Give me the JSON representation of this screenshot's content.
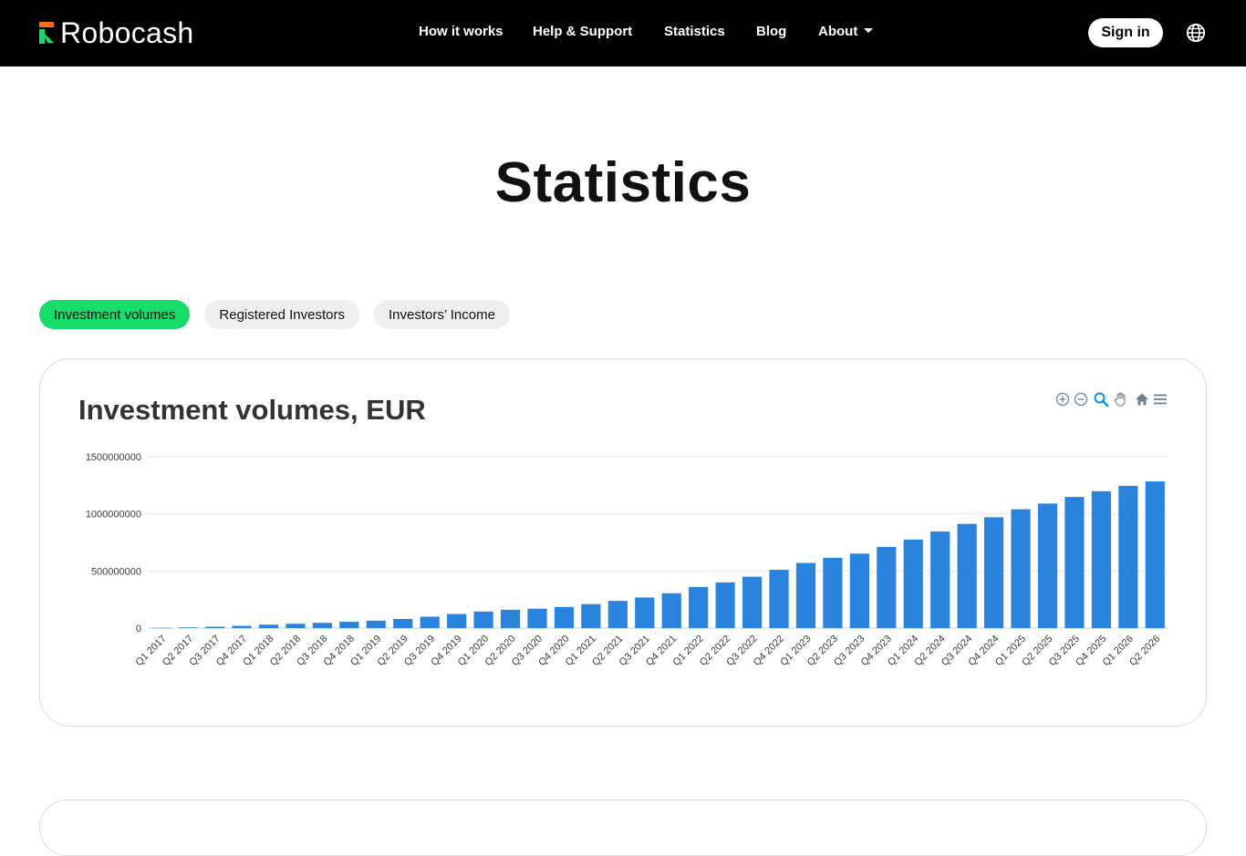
{
  "nav": {
    "brand": "Robocash",
    "links": [
      "How it works",
      "Help & Support",
      "Statistics",
      "Blog",
      "About"
    ],
    "signin": "Sign in",
    "globe_icon": "globe-icon",
    "about_icon": "caret-down-icon"
  },
  "page": {
    "title": "Statistics"
  },
  "tabs": [
    "Investment volumes",
    "Registered Investors",
    "Investors’ Income"
  ],
  "toolbar": {
    "icons": [
      "zoom-in-icon",
      "zoom-out-icon",
      "selection-zoom-icon",
      "pan-hand-icon",
      "reset-home-icon",
      "menu-icon"
    ]
  },
  "colors": {
    "accent": "#16dc6a",
    "bar": "#2a84de",
    "nav_bg": "#000000",
    "brand_orange": "#ff6b1a"
  },
  "chart_data": {
    "type": "bar",
    "title": "Investment volumes, EUR",
    "xlabel": "",
    "ylabel": "",
    "ylim": [
      0,
      1500000000
    ],
    "yticks": [
      "0",
      "500000000",
      "1000000000",
      "1500000000"
    ],
    "grid": true,
    "categories": [
      "Q1 2017",
      "Q2 2017",
      "Q3 2017",
      "Q4 2017",
      "Q1 2018",
      "Q2 2018",
      "Q3 2018",
      "Q4 2018",
      "Q1 2019",
      "Q2 2019",
      "Q3 2019",
      "Q4 2019",
      "Q1 2020",
      "Q2 2020",
      "Q3 2020",
      "Q4 2020",
      "Q1 2021",
      "Q2 2021",
      "Q3 2021",
      "Q4 2021",
      "Q1 2022",
      "Q2 2022",
      "Q3 2022",
      "Q4 2022",
      "Q1 2023",
      "Q2 2023",
      "Q3 2023",
      "Q4 2023",
      "Q1 2024",
      "Q2 2024",
      "Q3 2024",
      "Q4 2024",
      "Q1 2025",
      "Q2 2025",
      "Q3 2025",
      "Q4 2025",
      "Q1 2026",
      "Q2 2026"
    ],
    "values": [
      2000000,
      6000000,
      12000000,
      20000000,
      30000000,
      38000000,
      46000000,
      55000000,
      65000000,
      80000000,
      100000000,
      123000000,
      145000000,
      160000000,
      170000000,
      185000000,
      210000000,
      238000000,
      268000000,
      305000000,
      360000000,
      400000000,
      450000000,
      510000000,
      570000000,
      615000000,
      652000000,
      710000000,
      775000000,
      845000000,
      912000000,
      970000000,
      1040000000,
      1090000000,
      1148000000,
      1198000000,
      1245000000,
      1284000000
    ]
  }
}
